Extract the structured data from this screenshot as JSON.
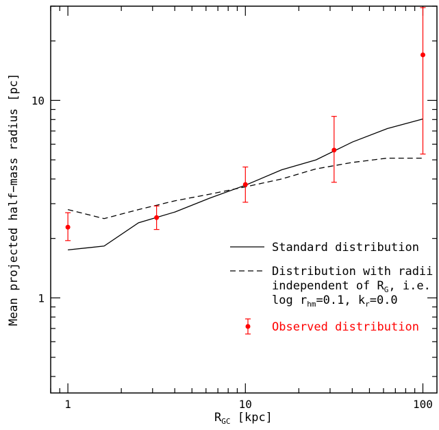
{
  "chart_data": {
    "type": "line",
    "xlabel": "R",
    "xlabel_sub": "GC",
    "xlabel_unit": " [kpc]",
    "ylabel": "Mean projected half−mass radius [pc]",
    "x_scale": "log",
    "y_scale": "log",
    "xlim": [
      0.8,
      120
    ],
    "ylim": [
      0.33,
      30
    ],
    "x_ticks": [
      {
        "value": 1,
        "label": "1"
      },
      {
        "value": 10,
        "label": "10"
      },
      {
        "value": 100,
        "label": "100"
      }
    ],
    "y_ticks": [
      {
        "value": 1,
        "label": "1"
      },
      {
        "value": 10,
        "label": "10"
      }
    ],
    "series": [
      {
        "name": "Standard distribution",
        "style": "solid",
        "color": "#000000",
        "x": [
          1.0,
          1.6,
          2.5,
          4.0,
          6.3,
          10.0,
          16.0,
          25.0,
          40.0,
          63.0,
          100.0
        ],
        "y": [
          1.75,
          1.83,
          2.4,
          2.72,
          3.2,
          3.72,
          4.45,
          5.0,
          6.15,
          7.2,
          8.05
        ]
      },
      {
        "name": "Distribution with radii independent of R",
        "style": "dashed",
        "color": "#000000",
        "x": [
          1.0,
          1.6,
          2.5,
          4.0,
          6.3,
          10.0,
          16.0,
          25.0,
          40.0,
          63.0,
          100.0
        ],
        "y": [
          2.8,
          2.52,
          2.8,
          3.1,
          3.35,
          3.65,
          4.0,
          4.5,
          4.85,
          5.1,
          5.1
        ]
      },
      {
        "name": "Observed distribution",
        "style": "points-errorbars",
        "color": "#ff0000",
        "x": [
          1.0,
          3.16,
          10.0,
          31.6,
          100.0
        ],
        "y": [
          2.28,
          2.55,
          3.75,
          5.6,
          17.0
        ],
        "y_low": [
          1.95,
          2.22,
          3.05,
          3.85,
          5.35
        ],
        "y_high": [
          2.7,
          2.92,
          4.6,
          8.3,
          29.5
        ]
      }
    ],
    "legend": {
      "placement": "bottom-right",
      "standard": "Standard distribution",
      "dashed_line1": "Distribution with radii",
      "dashed_line2_pre": "independent of R",
      "dashed_line2_sub": "G",
      "dashed_line2_post": ", i.e.",
      "dashed_line3_a": "log r",
      "dashed_line3_sub1": "hm",
      "dashed_line3_b": "=0.1, k",
      "dashed_line3_sub2": "r",
      "dashed_line3_c": "=0.0",
      "observed": "Observed distribution"
    },
    "grid": false
  }
}
